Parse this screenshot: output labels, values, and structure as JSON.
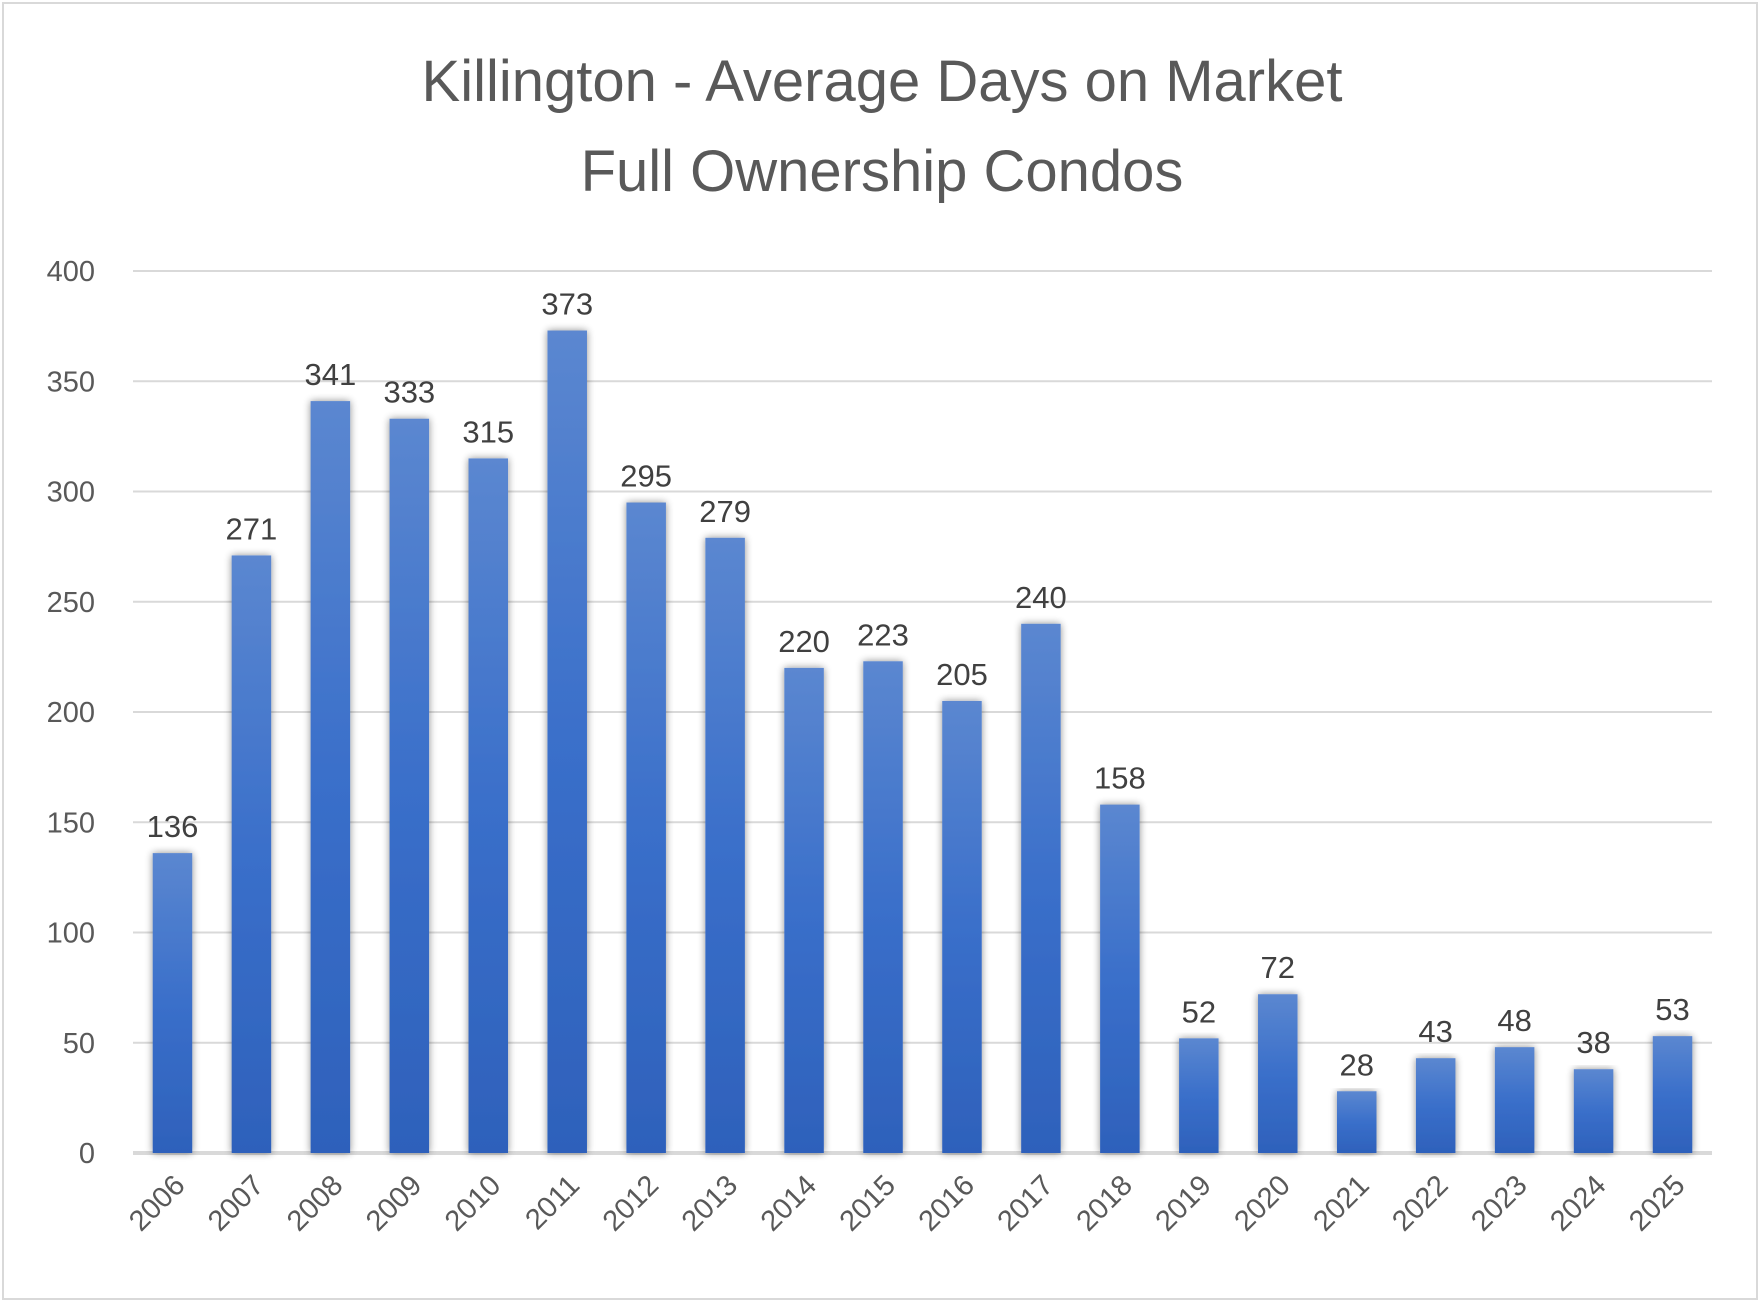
{
  "chart_data": {
    "type": "bar",
    "title": "Killington - Average Days on Market",
    "subtitle": "Full Ownership Condos",
    "xlabel": "",
    "ylabel": "",
    "categories": [
      "2006",
      "2007",
      "2008",
      "2009",
      "2010",
      "2011",
      "2012",
      "2013",
      "2014",
      "2015",
      "2016",
      "2017",
      "2018",
      "2019",
      "2020",
      "2021",
      "2022",
      "2023",
      "2024",
      "2025"
    ],
    "values": [
      136,
      271,
      341,
      333,
      315,
      373,
      295,
      279,
      220,
      223,
      205,
      240,
      158,
      52,
      72,
      28,
      43,
      48,
      38,
      53
    ],
    "ylim": [
      0,
      400
    ],
    "yticks": [
      0,
      50,
      100,
      150,
      200,
      250,
      300,
      350,
      400
    ],
    "grid": true,
    "data_labels": true,
    "colors": {
      "bar_top": "#5b87d0",
      "bar_bottom": "#2e61bb",
      "text": "#595959",
      "label": "#404040",
      "grid": "#d9d9d9"
    }
  }
}
